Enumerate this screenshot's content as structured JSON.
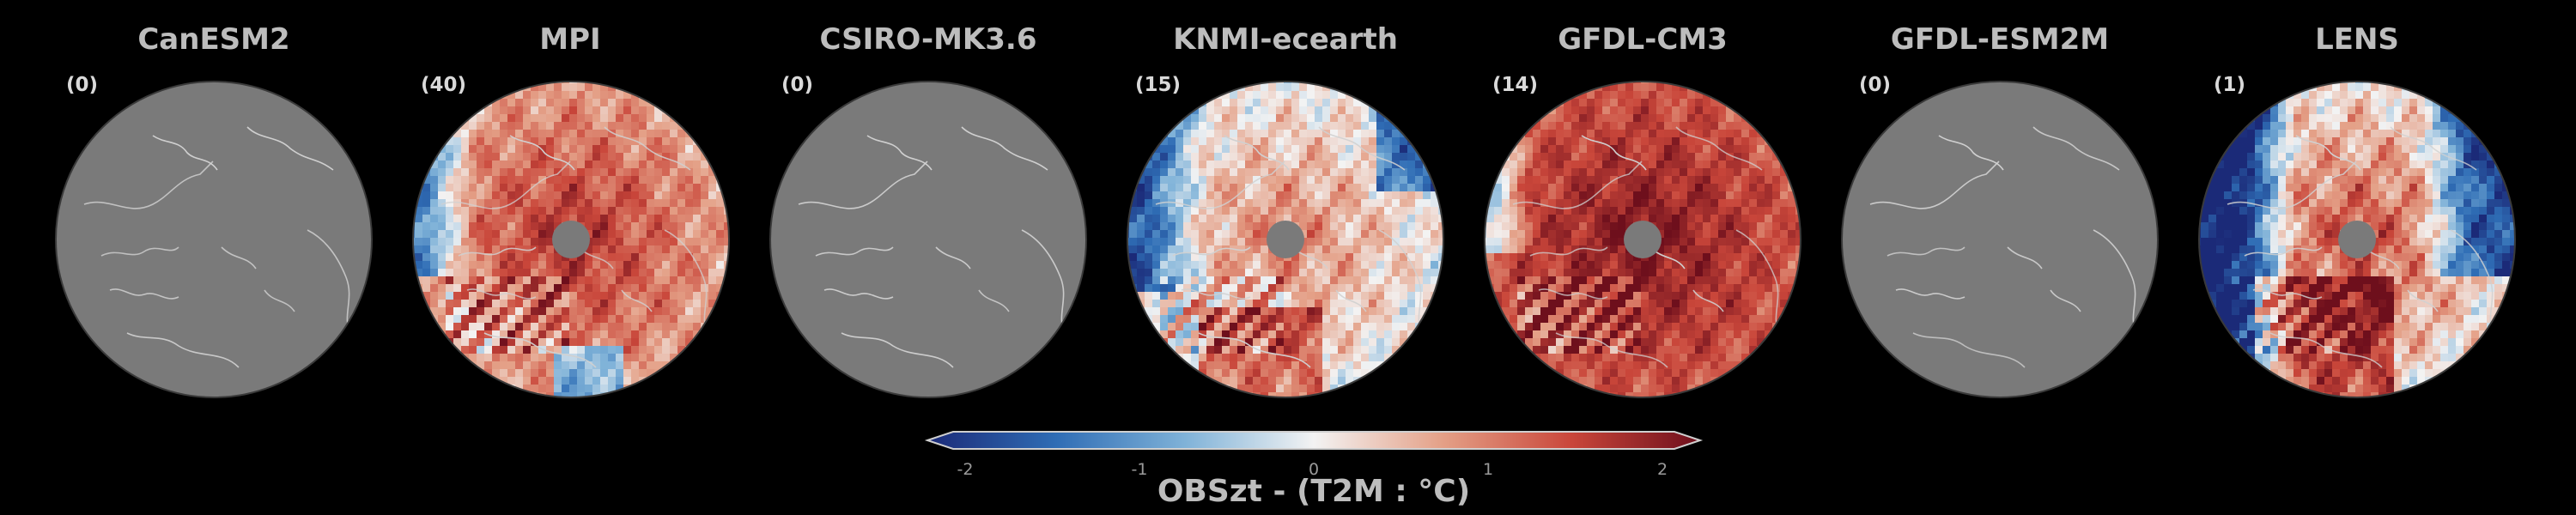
{
  "panels": [
    {
      "title": "CanESM2",
      "count": "(0)",
      "field": "none"
    },
    {
      "title": "MPI",
      "count": "(40)",
      "field": "warm_strong"
    },
    {
      "title": "CSIRO-MK3.6",
      "count": "(0)",
      "field": "none"
    },
    {
      "title": "KNMI-ecearth",
      "count": "(15)",
      "field": "mixed_cool_left"
    },
    {
      "title": "GFDL-CM3",
      "count": "(14)",
      "field": "warm_very_strong"
    },
    {
      "title": "GFDL-ESM2M",
      "count": "(0)",
      "field": "none"
    },
    {
      "title": "LENS",
      "count": "(1)",
      "field": "mixed_cool_edges"
    }
  ],
  "colorbar": {
    "label": "OBSzt - (T2M : °C)",
    "ticks": [
      "-2",
      "-1",
      "0",
      "1",
      "2"
    ],
    "min": -2,
    "max": 2,
    "colors": [
      "#1b2a78",
      "#2f6db5",
      "#7fb2d8",
      "#f3f3f3",
      "#e4a087",
      "#c9463a",
      "#6e0f1c"
    ]
  },
  "colors": {
    "background": "#000000",
    "nodata": "#7a7a7a",
    "coastline": "#d0d0d0"
  }
}
